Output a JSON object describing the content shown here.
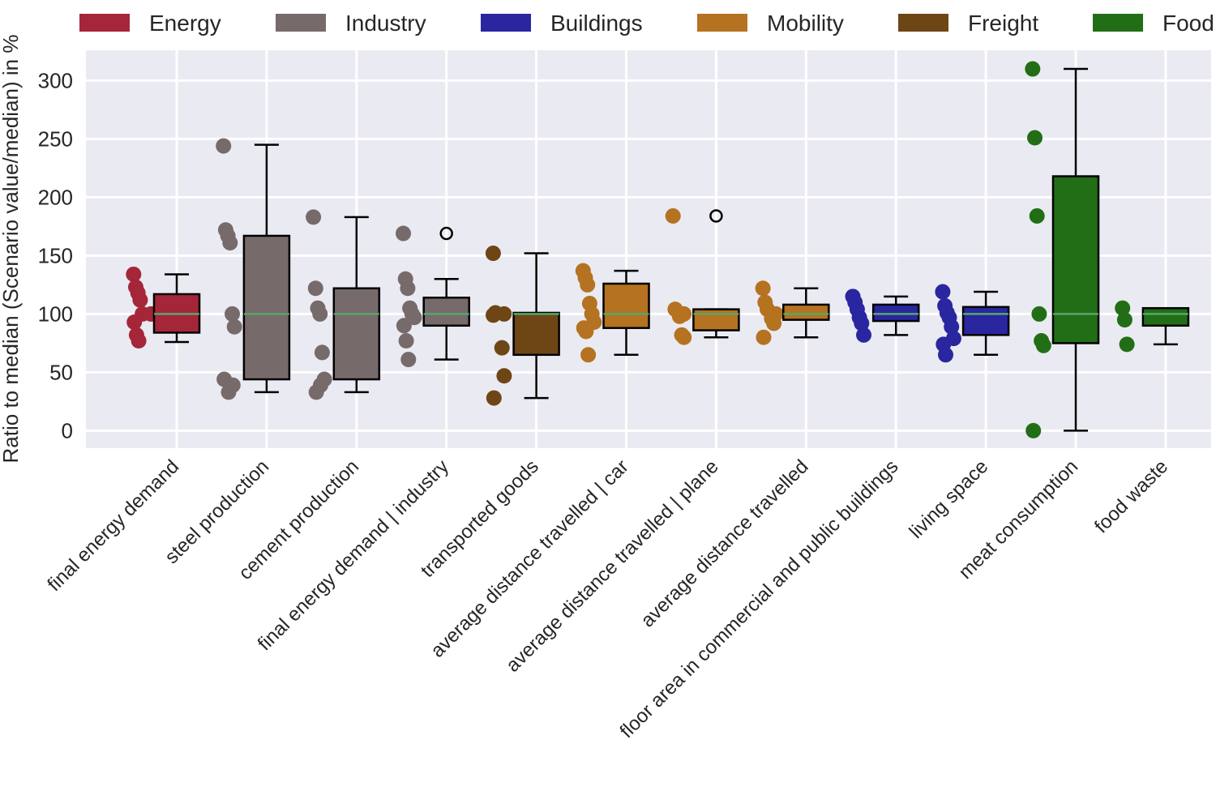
{
  "chart_data": {
    "type": "box",
    "title": "",
    "xlabel": "",
    "ylabel": "Ratio to median (Scenario value/median) in %",
    "ylim": [
      -15,
      326
    ],
    "yticks": [
      0,
      50,
      100,
      150,
      200,
      250,
      300
    ],
    "grid": true,
    "legend_placement": "top",
    "legend": [
      {
        "name": "Energy",
        "color": "#a52639"
      },
      {
        "name": "Industry",
        "color": "#766a6b"
      },
      {
        "name": "Buildings",
        "color": "#2a26a0"
      },
      {
        "name": "Mobility",
        "color": "#b57220"
      },
      {
        "name": "Freight",
        "color": "#6e4615"
      },
      {
        "name": "Food",
        "color": "#226e17"
      }
    ],
    "median_line_color": "#55a868",
    "categories": [
      {
        "label": "final energy demand",
        "group": "Energy",
        "whisker_low": 76,
        "q1": 84,
        "median": 100,
        "q3": 117,
        "whisker_high": 134,
        "outliers": [],
        "points": [
          134,
          123,
          118,
          112,
          100,
          100,
          93,
          82,
          77
        ]
      },
      {
        "label": "steel production",
        "group": "Industry",
        "whisker_low": 33,
        "q1": 44,
        "median": 100,
        "q3": 167,
        "whisker_high": 245,
        "outliers": [],
        "points": [
          244,
          172,
          167,
          161,
          100,
          89,
          44,
          39,
          33
        ]
      },
      {
        "label": "cement production",
        "group": "Industry",
        "whisker_low": 33,
        "q1": 44,
        "median": 100,
        "q3": 122,
        "whisker_high": 183,
        "outliers": [],
        "points": [
          183,
          122,
          105,
          100,
          67,
          44,
          39,
          33
        ]
      },
      {
        "label": "final energy demand  | industry",
        "group": "Industry",
        "whisker_low": 61,
        "q1": 90,
        "median": 100,
        "q3": 114,
        "whisker_high": 130,
        "outliers": [
          169
        ],
        "points": [
          169,
          130,
          122,
          105,
          100,
          97,
          90,
          77,
          61
        ]
      },
      {
        "label": "transported goods",
        "group": "Freight",
        "whisker_low": 28,
        "q1": 65,
        "median": 100,
        "q3": 101,
        "whisker_high": 152,
        "outliers": [],
        "points": [
          152,
          101,
          100,
          99,
          71,
          47,
          28
        ]
      },
      {
        "label": "average distance travelled  | car",
        "group": "Mobility",
        "whisker_low": 65,
        "q1": 88,
        "median": 100,
        "q3": 126,
        "whisker_high": 137,
        "outliers": [],
        "points": [
          137,
          131,
          125,
          109,
          100,
          93,
          88,
          85,
          65
        ]
      },
      {
        "label": "average distance travelled  | plane",
        "group": "Mobility",
        "whisker_low": 80,
        "q1": 86,
        "median": 100,
        "q3": 104,
        "whisker_high": 104,
        "outliers": [
          184
        ],
        "points": [
          184,
          104,
          100,
          98,
          82,
          80
        ]
      },
      {
        "label": "average distance travelled",
        "group": "Mobility",
        "whisker_low": 80,
        "q1": 95,
        "median": 100,
        "q3": 108,
        "whisker_high": 122,
        "outliers": [],
        "points": [
          122,
          110,
          104,
          100,
          96,
          92,
          80
        ]
      },
      {
        "label": "floor area in commercial and public buildings",
        "group": "Buildings",
        "whisker_low": 82,
        "q1": 94,
        "median": 100,
        "q3": 108,
        "whisker_high": 115,
        "outliers": [],
        "points": [
          115,
          110,
          104,
          97,
          92,
          82
        ]
      },
      {
        "label": "living space",
        "group": "Buildings",
        "whisker_low": 65,
        "q1": 82,
        "median": 100,
        "q3": 106,
        "whisker_high": 119,
        "outliers": [],
        "points": [
          119,
          107,
          101,
          97,
          89,
          79,
          74,
          65
        ]
      },
      {
        "label": "meat consumption",
        "group": "Food",
        "whisker_low": 0,
        "q1": 75,
        "median": 100,
        "q3": 218,
        "whisker_high": 310,
        "outliers": [],
        "points": [
          310,
          251,
          184,
          100,
          77,
          73,
          0
        ]
      },
      {
        "label": "food waste",
        "group": "Food",
        "whisker_low": 74,
        "q1": 90,
        "median": 100,
        "q3": 105,
        "whisker_high": 105,
        "outliers": [],
        "points": [
          105,
          95,
          74
        ]
      }
    ]
  }
}
